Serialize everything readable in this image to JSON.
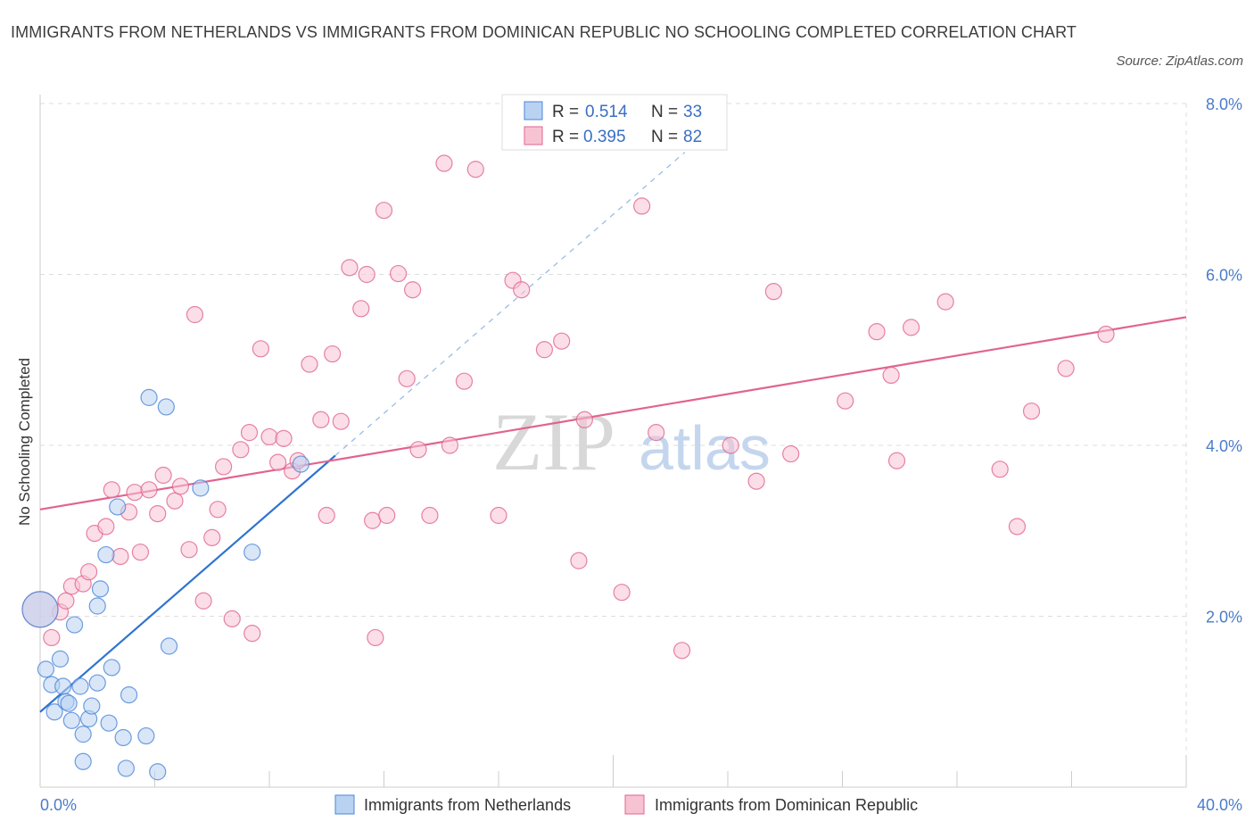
{
  "title": "IMMIGRANTS FROM NETHERLANDS VS IMMIGRANTS FROM DOMINICAN REPUBLIC NO SCHOOLING COMPLETED CORRELATION CHART",
  "source": "Source: ZipAtlas.com",
  "watermark": {
    "zip": "ZIP",
    "atlas": "atlas"
  },
  "colors": {
    "netherlands": "#4a86d8",
    "netherlands_fill": "#b9d2f2",
    "dominican": "#e0648f",
    "dominican_fill": "#f7c3d3",
    "tick_text": "#4a7cc9",
    "grid": "#dddddd"
  },
  "chart_data": {
    "type": "scatter",
    "title": "IMMIGRANTS FROM NETHERLANDS VS IMMIGRANTS FROM DOMINICAN REPUBLIC NO SCHOOLING COMPLETED CORRELATION CHART",
    "xlabel": "",
    "ylabel": "No Schooling Completed",
    "xlim": [
      0,
      40
    ],
    "ylim": [
      0,
      8
    ],
    "x_tick_labels": [
      "0.0%",
      "40.0%"
    ],
    "y_ticks": [
      2,
      4,
      6,
      8
    ],
    "y_tick_labels": [
      "2.0%",
      "4.0%",
      "6.0%",
      "8.0%"
    ],
    "grid": true,
    "legend_position": "top-center",
    "legend": [
      {
        "r_label": "R =",
        "r_value": "0.514",
        "n_label": "N =",
        "n_value": "33"
      },
      {
        "r_label": "R =",
        "r_value": "0.395",
        "n_label": "N =",
        "n_value": "82"
      }
    ],
    "series": [
      {
        "name": "Immigrants from Netherlands",
        "trend": {
          "x": [
            0,
            10.3
          ],
          "y": [
            0.88,
            3.88
          ],
          "dashed_extension_to": [
            22.5,
            7.43
          ]
        },
        "points": [
          [
            0,
            2.08
          ],
          [
            0.2,
            1.38
          ],
          [
            0.4,
            1.2
          ],
          [
            0.5,
            0.88
          ],
          [
            0.7,
            1.5
          ],
          [
            0.8,
            1.18
          ],
          [
            0.9,
            1.0
          ],
          [
            1.1,
            0.78
          ],
          [
            1.2,
            1.9
          ],
          [
            1.4,
            1.18
          ],
          [
            1.5,
            0.62
          ],
          [
            1.5,
            0.3
          ],
          [
            1.7,
            0.8
          ],
          [
            1.8,
            0.95
          ],
          [
            2.0,
            2.12
          ],
          [
            2.0,
            1.22
          ],
          [
            2.1,
            2.32
          ],
          [
            2.3,
            2.72
          ],
          [
            2.4,
            0.75
          ],
          [
            2.5,
            1.4
          ],
          [
            2.7,
            3.28
          ],
          [
            2.9,
            0.58
          ],
          [
            3.0,
            0.22
          ],
          [
            3.1,
            1.08
          ],
          [
            3.7,
            0.6
          ],
          [
            3.8,
            4.56
          ],
          [
            4.1,
            0.18
          ],
          [
            4.4,
            4.45
          ],
          [
            4.5,
            1.65
          ],
          [
            5.6,
            3.5
          ],
          [
            7.4,
            2.75
          ],
          [
            9.1,
            3.78
          ],
          [
            1.0,
            0.98
          ]
        ]
      },
      {
        "name": "Immigrants from Dominican Republic",
        "trend": {
          "x": [
            0,
            40
          ],
          "y": [
            3.25,
            5.5
          ]
        },
        "points": [
          [
            0.4,
            1.75
          ],
          [
            0.7,
            2.05
          ],
          [
            0.9,
            2.18
          ],
          [
            1.1,
            2.35
          ],
          [
            1.5,
            2.38
          ],
          [
            1.7,
            2.52
          ],
          [
            1.9,
            2.97
          ],
          [
            2.3,
            3.05
          ],
          [
            2.5,
            3.48
          ],
          [
            2.8,
            2.7
          ],
          [
            3.1,
            3.22
          ],
          [
            3.3,
            3.45
          ],
          [
            3.5,
            2.75
          ],
          [
            3.8,
            3.48
          ],
          [
            4.1,
            3.2
          ],
          [
            4.3,
            3.65
          ],
          [
            4.7,
            3.35
          ],
          [
            4.9,
            3.52
          ],
          [
            5.2,
            2.78
          ],
          [
            5.4,
            5.53
          ],
          [
            5.7,
            2.18
          ],
          [
            6.0,
            2.92
          ],
          [
            6.2,
            3.25
          ],
          [
            6.4,
            3.75
          ],
          [
            6.7,
            1.97
          ],
          [
            7.0,
            3.95
          ],
          [
            7.3,
            4.15
          ],
          [
            7.4,
            1.8
          ],
          [
            7.7,
            5.13
          ],
          [
            8.0,
            4.1
          ],
          [
            8.3,
            3.8
          ],
          [
            8.5,
            4.08
          ],
          [
            8.8,
            3.7
          ],
          [
            9.0,
            3.82
          ],
          [
            9.4,
            4.95
          ],
          [
            9.8,
            4.3
          ],
          [
            10.0,
            3.18
          ],
          [
            10.2,
            5.07
          ],
          [
            10.5,
            4.28
          ],
          [
            10.8,
            6.08
          ],
          [
            11.2,
            5.6
          ],
          [
            11.4,
            6.0
          ],
          [
            11.6,
            3.12
          ],
          [
            11.7,
            1.75
          ],
          [
            12.0,
            6.75
          ],
          [
            12.1,
            3.18
          ],
          [
            12.5,
            6.01
          ],
          [
            12.8,
            4.78
          ],
          [
            13.0,
            5.82
          ],
          [
            13.2,
            3.95
          ],
          [
            13.6,
            3.18
          ],
          [
            14.1,
            7.3
          ],
          [
            14.3,
            4.0
          ],
          [
            14.8,
            4.75
          ],
          [
            15.2,
            7.23
          ],
          [
            16.0,
            3.18
          ],
          [
            16.5,
            5.93
          ],
          [
            16.8,
            5.82
          ],
          [
            17.6,
            5.12
          ],
          [
            18.2,
            5.22
          ],
          [
            18.8,
            2.65
          ],
          [
            19.0,
            4.3
          ],
          [
            20.3,
            2.28
          ],
          [
            21.0,
            6.8
          ],
          [
            21.5,
            4.15
          ],
          [
            22.4,
            1.6
          ],
          [
            24.1,
            4.0
          ],
          [
            25.0,
            3.58
          ],
          [
            25.6,
            5.8
          ],
          [
            26.2,
            3.9
          ],
          [
            28.1,
            4.52
          ],
          [
            29.2,
            5.33
          ],
          [
            29.7,
            4.82
          ],
          [
            29.9,
            3.82
          ],
          [
            30.4,
            5.38
          ],
          [
            31.6,
            5.68
          ],
          [
            33.5,
            3.72
          ],
          [
            34.1,
            3.05
          ],
          [
            34.6,
            4.4
          ],
          [
            35.8,
            4.9
          ],
          [
            37.2,
            5.3
          ],
          [
            0.0,
            2.08
          ]
        ]
      }
    ]
  }
}
